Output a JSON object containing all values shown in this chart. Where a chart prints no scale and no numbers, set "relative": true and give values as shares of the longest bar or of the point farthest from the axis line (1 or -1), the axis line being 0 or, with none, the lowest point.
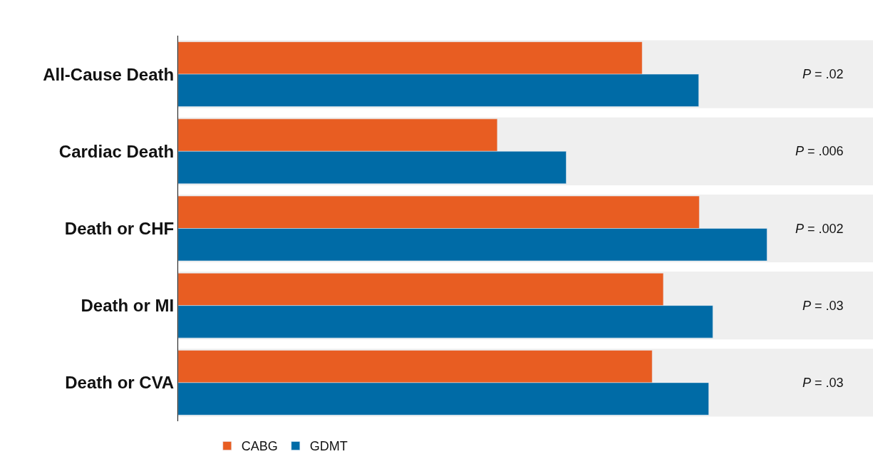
{
  "chart_data": {
    "type": "bar",
    "orientation": "horizontal",
    "relative": true,
    "categories": [
      "All-Cause Death",
      "Cardiac Death",
      "Death or CHF",
      "Death or MI",
      "Death or CVA"
    ],
    "series": [
      {
        "name": "CABG",
        "color": "#e85d22",
        "values": [
          0.788,
          0.542,
          0.885,
          0.824,
          0.805
        ]
      },
      {
        "name": "GDMT",
        "color": "#006ba6",
        "values": [
          0.884,
          0.659,
          1.0,
          0.908,
          0.901
        ]
      }
    ],
    "annotations": [
      "P = .02",
      "P = .006",
      "P = .002",
      "P = .03",
      "P = .03"
    ],
    "bands": [
      {
        "axis": "y",
        "from": "All-Cause Death",
        "to": "All-Cause Death",
        "color": "#efefef"
      },
      {
        "axis": "y",
        "from": "Cardiac Death",
        "to": "Cardiac Death",
        "color": "#efefef"
      },
      {
        "axis": "y",
        "from": "Death or CHF",
        "to": "Death or CHF",
        "color": "#efefef"
      },
      {
        "axis": "y",
        "from": "Death or MI",
        "to": "Death or MI",
        "color": "#efefef"
      },
      {
        "axis": "y",
        "from": "Death or CVA",
        "to": "Death or CVA",
        "color": "#efefef"
      }
    ],
    "legend": "bottom"
  }
}
